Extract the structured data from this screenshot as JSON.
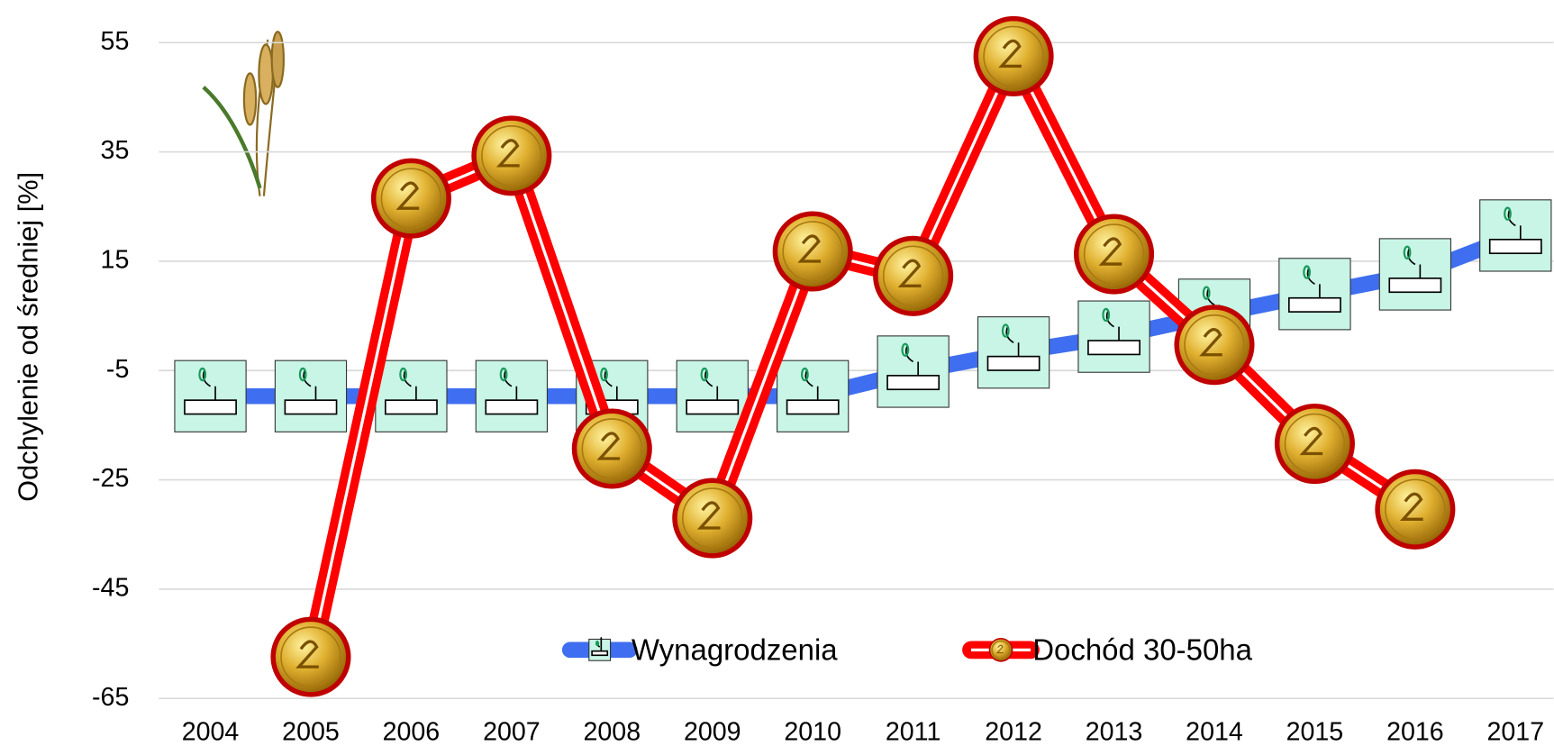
{
  "chart_data": {
    "type": "line",
    "y_label": "Odchylenie od średniej [%]",
    "categories": [
      "2004",
      "2005",
      "2006",
      "2007",
      "2008",
      "2009",
      "2010",
      "2011",
      "2012",
      "2013",
      "2014",
      "2015",
      "2016",
      "2017"
    ],
    "series": [
      {
        "name": "Wynagrodzenia",
        "color": "#3f6ff0",
        "values": [
          -9.7,
          -9.7,
          -9.7,
          -9.7,
          -9.7,
          -9.7,
          -9.7,
          -5.2,
          -1.7,
          1.2,
          5.2,
          9.0,
          12.6,
          19.7
        ]
      },
      {
        "name": "Dochód 30-50ha",
        "color": "#ff0000",
        "values": [
          null,
          -57.4,
          26.5,
          34.3,
          -19.3,
          -32.0,
          16.8,
          12.3,
          52.5,
          16.3,
          -0.3,
          -18.4,
          -30.4,
          null
        ]
      }
    ],
    "ylim": [
      -65,
      55
    ],
    "yticks": [
      -65,
      -45,
      -25,
      -5,
      15,
      35,
      55
    ],
    "grid": true
  }
}
